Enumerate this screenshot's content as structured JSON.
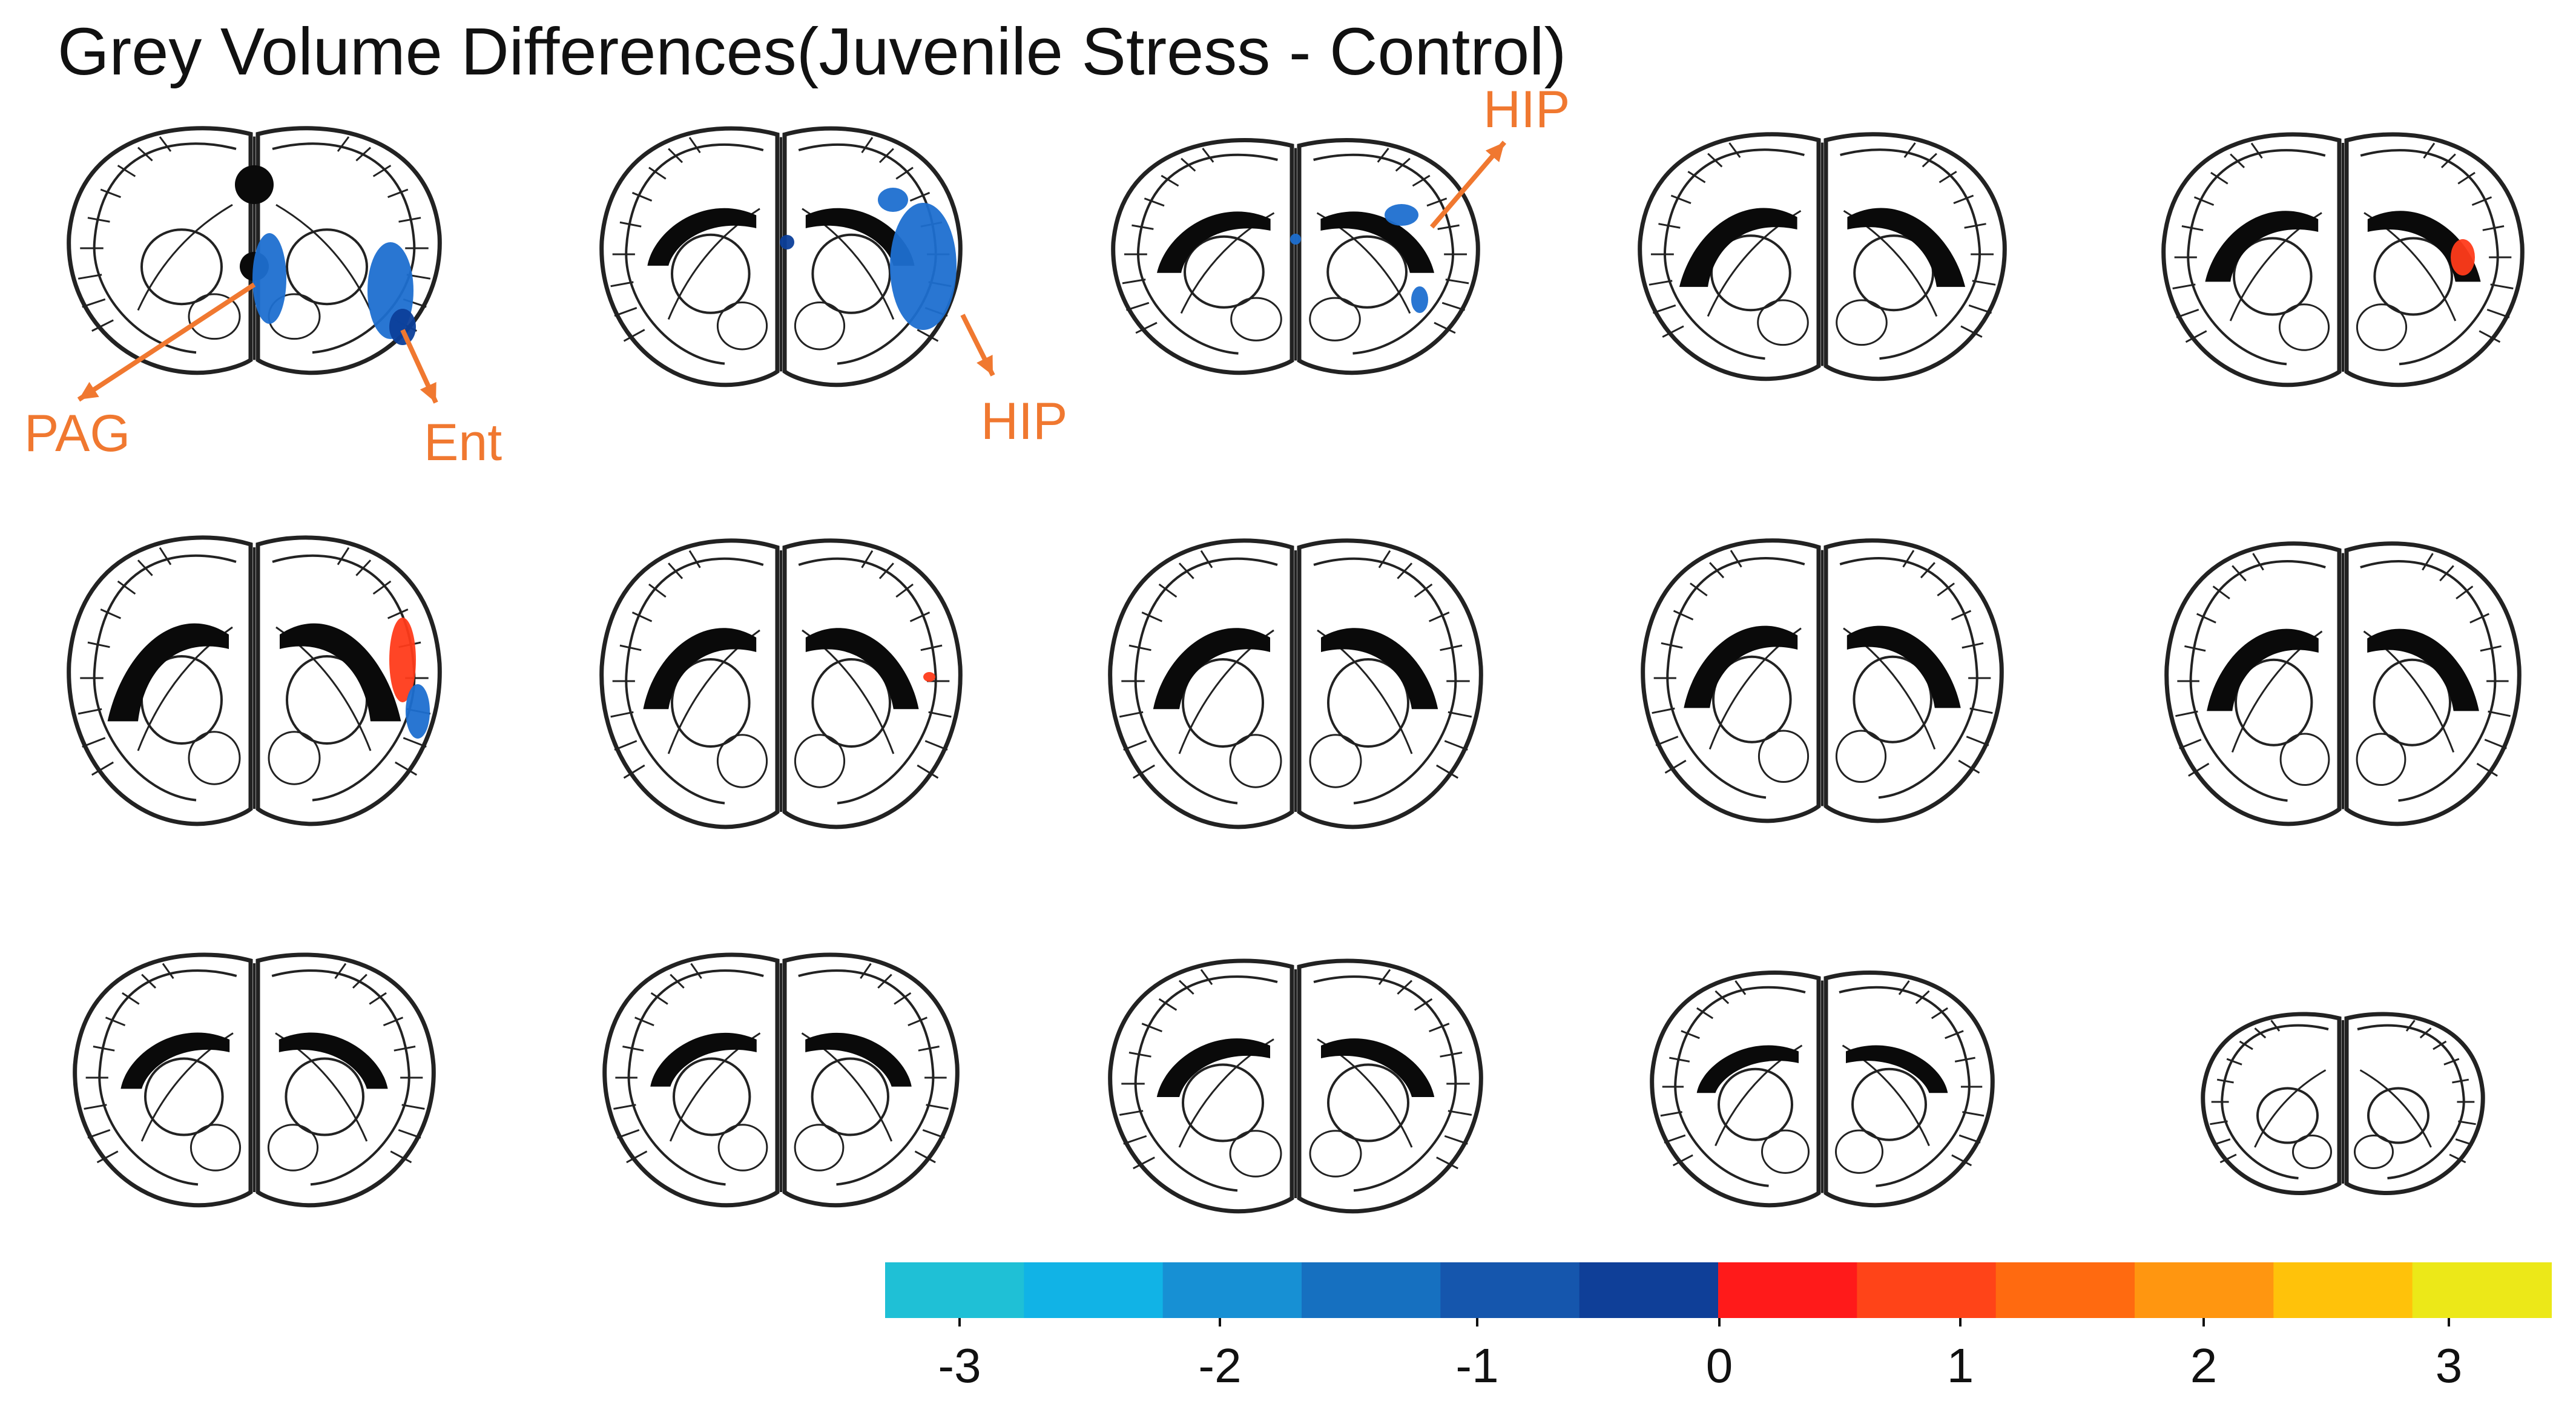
{
  "title": "Grey Volume Differences(Juvenile Stress - Control)",
  "colors": {
    "outline": "#222222",
    "annotation": "#f07830",
    "blob_neg": "#1e6fd0",
    "blob_neg_dark": "#0c3f9a",
    "blob_pos": "#ff3b1a",
    "white_matter": "#0a0a0a"
  },
  "annotations": [
    {
      "text": "PAG"
    },
    {
      "text": "Ent"
    },
    {
      "text": "HIP"
    },
    {
      "text": "HIP"
    }
  ],
  "colorbar": {
    "bins": [
      "#1fc0d6",
      "#11b3e6",
      "#1790d4",
      "#1670c0",
      "#1556ad",
      "#0f3f98",
      "#ff1a1a",
      "#ff4418",
      "#ff6a10",
      "#ff9610",
      "#ffc20a",
      "#ece818"
    ],
    "ticks": [
      "-3",
      "-2",
      "-1",
      "0",
      "1",
      "2",
      "3"
    ]
  }
}
